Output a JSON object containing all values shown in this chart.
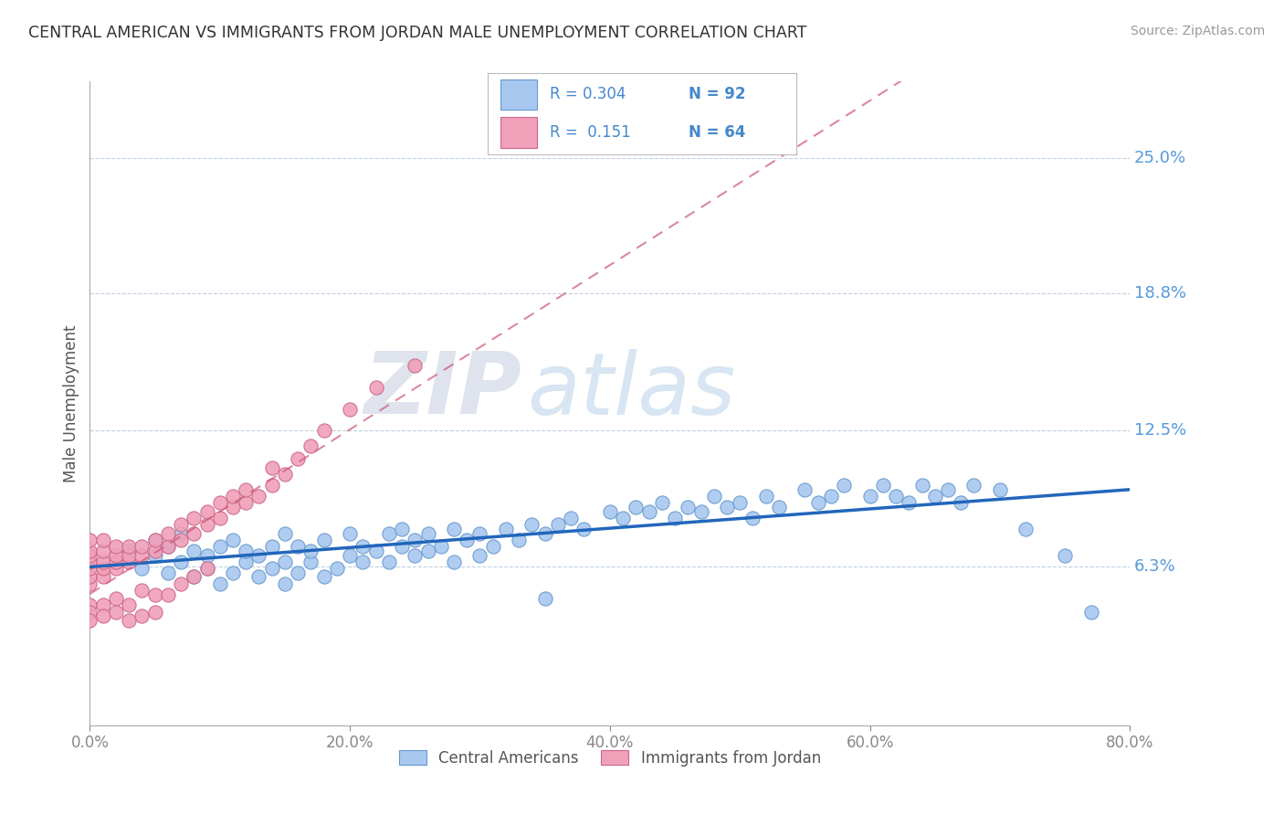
{
  "title": "CENTRAL AMERICAN VS IMMIGRANTS FROM JORDAN MALE UNEMPLOYMENT CORRELATION CHART",
  "source": "Source: ZipAtlas.com",
  "ylabel": "Male Unemployment",
  "xlim": [
    0.0,
    0.8
  ],
  "ylim": [
    -0.01,
    0.285
  ],
  "ytick_vals": [
    0.063,
    0.125,
    0.188,
    0.25
  ],
  "ytick_labels": [
    "6.3%",
    "12.5%",
    "18.8%",
    "25.0%"
  ],
  "xtick_vals": [
    0.0,
    0.2,
    0.4,
    0.6,
    0.8
  ],
  "xtick_labels": [
    "0.0%",
    "20.0%",
    "40.0%",
    "60.0%",
    "80.0%"
  ],
  "series_blue_label": "Central Americans",
  "series_pink_label": "Immigrants from Jordan",
  "blue_color": "#a8c8f0",
  "blue_edge": "#6699cc",
  "blue_line": "#2266bb",
  "pink_color": "#f0a0b8",
  "pink_edge": "#cc6688",
  "pink_line": "#cc5577",
  "grid_color": "#c0d0e0",
  "R_blue": "0.304",
  "N_blue": "92",
  "R_pink": "0.151",
  "N_pink": "64",
  "blue_x": [
    0.02,
    0.03,
    0.04,
    0.05,
    0.05,
    0.06,
    0.06,
    0.07,
    0.07,
    0.08,
    0.08,
    0.09,
    0.09,
    0.1,
    0.1,
    0.11,
    0.11,
    0.12,
    0.12,
    0.13,
    0.13,
    0.14,
    0.14,
    0.15,
    0.15,
    0.15,
    0.16,
    0.16,
    0.17,
    0.17,
    0.18,
    0.18,
    0.19,
    0.2,
    0.2,
    0.21,
    0.21,
    0.22,
    0.23,
    0.23,
    0.24,
    0.24,
    0.25,
    0.25,
    0.26,
    0.26,
    0.27,
    0.28,
    0.28,
    0.29,
    0.3,
    0.3,
    0.31,
    0.32,
    0.33,
    0.34,
    0.35,
    0.36,
    0.37,
    0.38,
    0.4,
    0.41,
    0.42,
    0.43,
    0.44,
    0.45,
    0.46,
    0.47,
    0.48,
    0.49,
    0.5,
    0.51,
    0.52,
    0.53,
    0.55,
    0.56,
    0.57,
    0.58,
    0.6,
    0.61,
    0.62,
    0.63,
    0.64,
    0.65,
    0.66,
    0.67,
    0.68,
    0.7,
    0.72,
    0.75,
    0.77,
    0.35
  ],
  "blue_y": [
    0.065,
    0.07,
    0.062,
    0.068,
    0.075,
    0.06,
    0.072,
    0.065,
    0.078,
    0.058,
    0.07,
    0.062,
    0.068,
    0.055,
    0.072,
    0.06,
    0.075,
    0.065,
    0.07,
    0.058,
    0.068,
    0.062,
    0.072,
    0.055,
    0.065,
    0.078,
    0.06,
    0.072,
    0.065,
    0.07,
    0.058,
    0.075,
    0.062,
    0.068,
    0.078,
    0.065,
    0.072,
    0.07,
    0.065,
    0.078,
    0.072,
    0.08,
    0.068,
    0.075,
    0.07,
    0.078,
    0.072,
    0.065,
    0.08,
    0.075,
    0.068,
    0.078,
    0.072,
    0.08,
    0.075,
    0.082,
    0.078,
    0.082,
    0.085,
    0.08,
    0.088,
    0.085,
    0.09,
    0.088,
    0.092,
    0.085,
    0.09,
    0.088,
    0.095,
    0.09,
    0.092,
    0.085,
    0.095,
    0.09,
    0.098,
    0.092,
    0.095,
    0.1,
    0.095,
    0.1,
    0.095,
    0.092,
    0.1,
    0.095,
    0.098,
    0.092,
    0.1,
    0.098,
    0.08,
    0.068,
    0.042,
    0.048
  ],
  "pink_x": [
    0.0,
    0.0,
    0.0,
    0.0,
    0.0,
    0.0,
    0.0,
    0.0,
    0.0,
    0.0,
    0.01,
    0.01,
    0.01,
    0.01,
    0.01,
    0.01,
    0.01,
    0.02,
    0.02,
    0.02,
    0.02,
    0.02,
    0.02,
    0.03,
    0.03,
    0.03,
    0.03,
    0.03,
    0.04,
    0.04,
    0.04,
    0.04,
    0.05,
    0.05,
    0.05,
    0.05,
    0.06,
    0.06,
    0.06,
    0.07,
    0.07,
    0.07,
    0.08,
    0.08,
    0.08,
    0.09,
    0.09,
    0.09,
    0.1,
    0.1,
    0.11,
    0.11,
    0.12,
    0.12,
    0.13,
    0.14,
    0.14,
    0.15,
    0.16,
    0.17,
    0.18,
    0.2,
    0.22,
    0.25
  ],
  "pink_y": [
    0.055,
    0.058,
    0.062,
    0.065,
    0.068,
    0.07,
    0.075,
    0.045,
    0.042,
    0.038,
    0.058,
    0.062,
    0.065,
    0.07,
    0.075,
    0.045,
    0.04,
    0.062,
    0.065,
    0.068,
    0.072,
    0.048,
    0.042,
    0.065,
    0.068,
    0.072,
    0.045,
    0.038,
    0.068,
    0.072,
    0.052,
    0.04,
    0.07,
    0.075,
    0.05,
    0.042,
    0.072,
    0.078,
    0.05,
    0.075,
    0.082,
    0.055,
    0.078,
    0.085,
    0.058,
    0.082,
    0.088,
    0.062,
    0.085,
    0.092,
    0.09,
    0.095,
    0.092,
    0.098,
    0.095,
    0.1,
    0.108,
    0.105,
    0.112,
    0.118,
    0.125,
    0.135,
    0.145,
    0.155
  ]
}
